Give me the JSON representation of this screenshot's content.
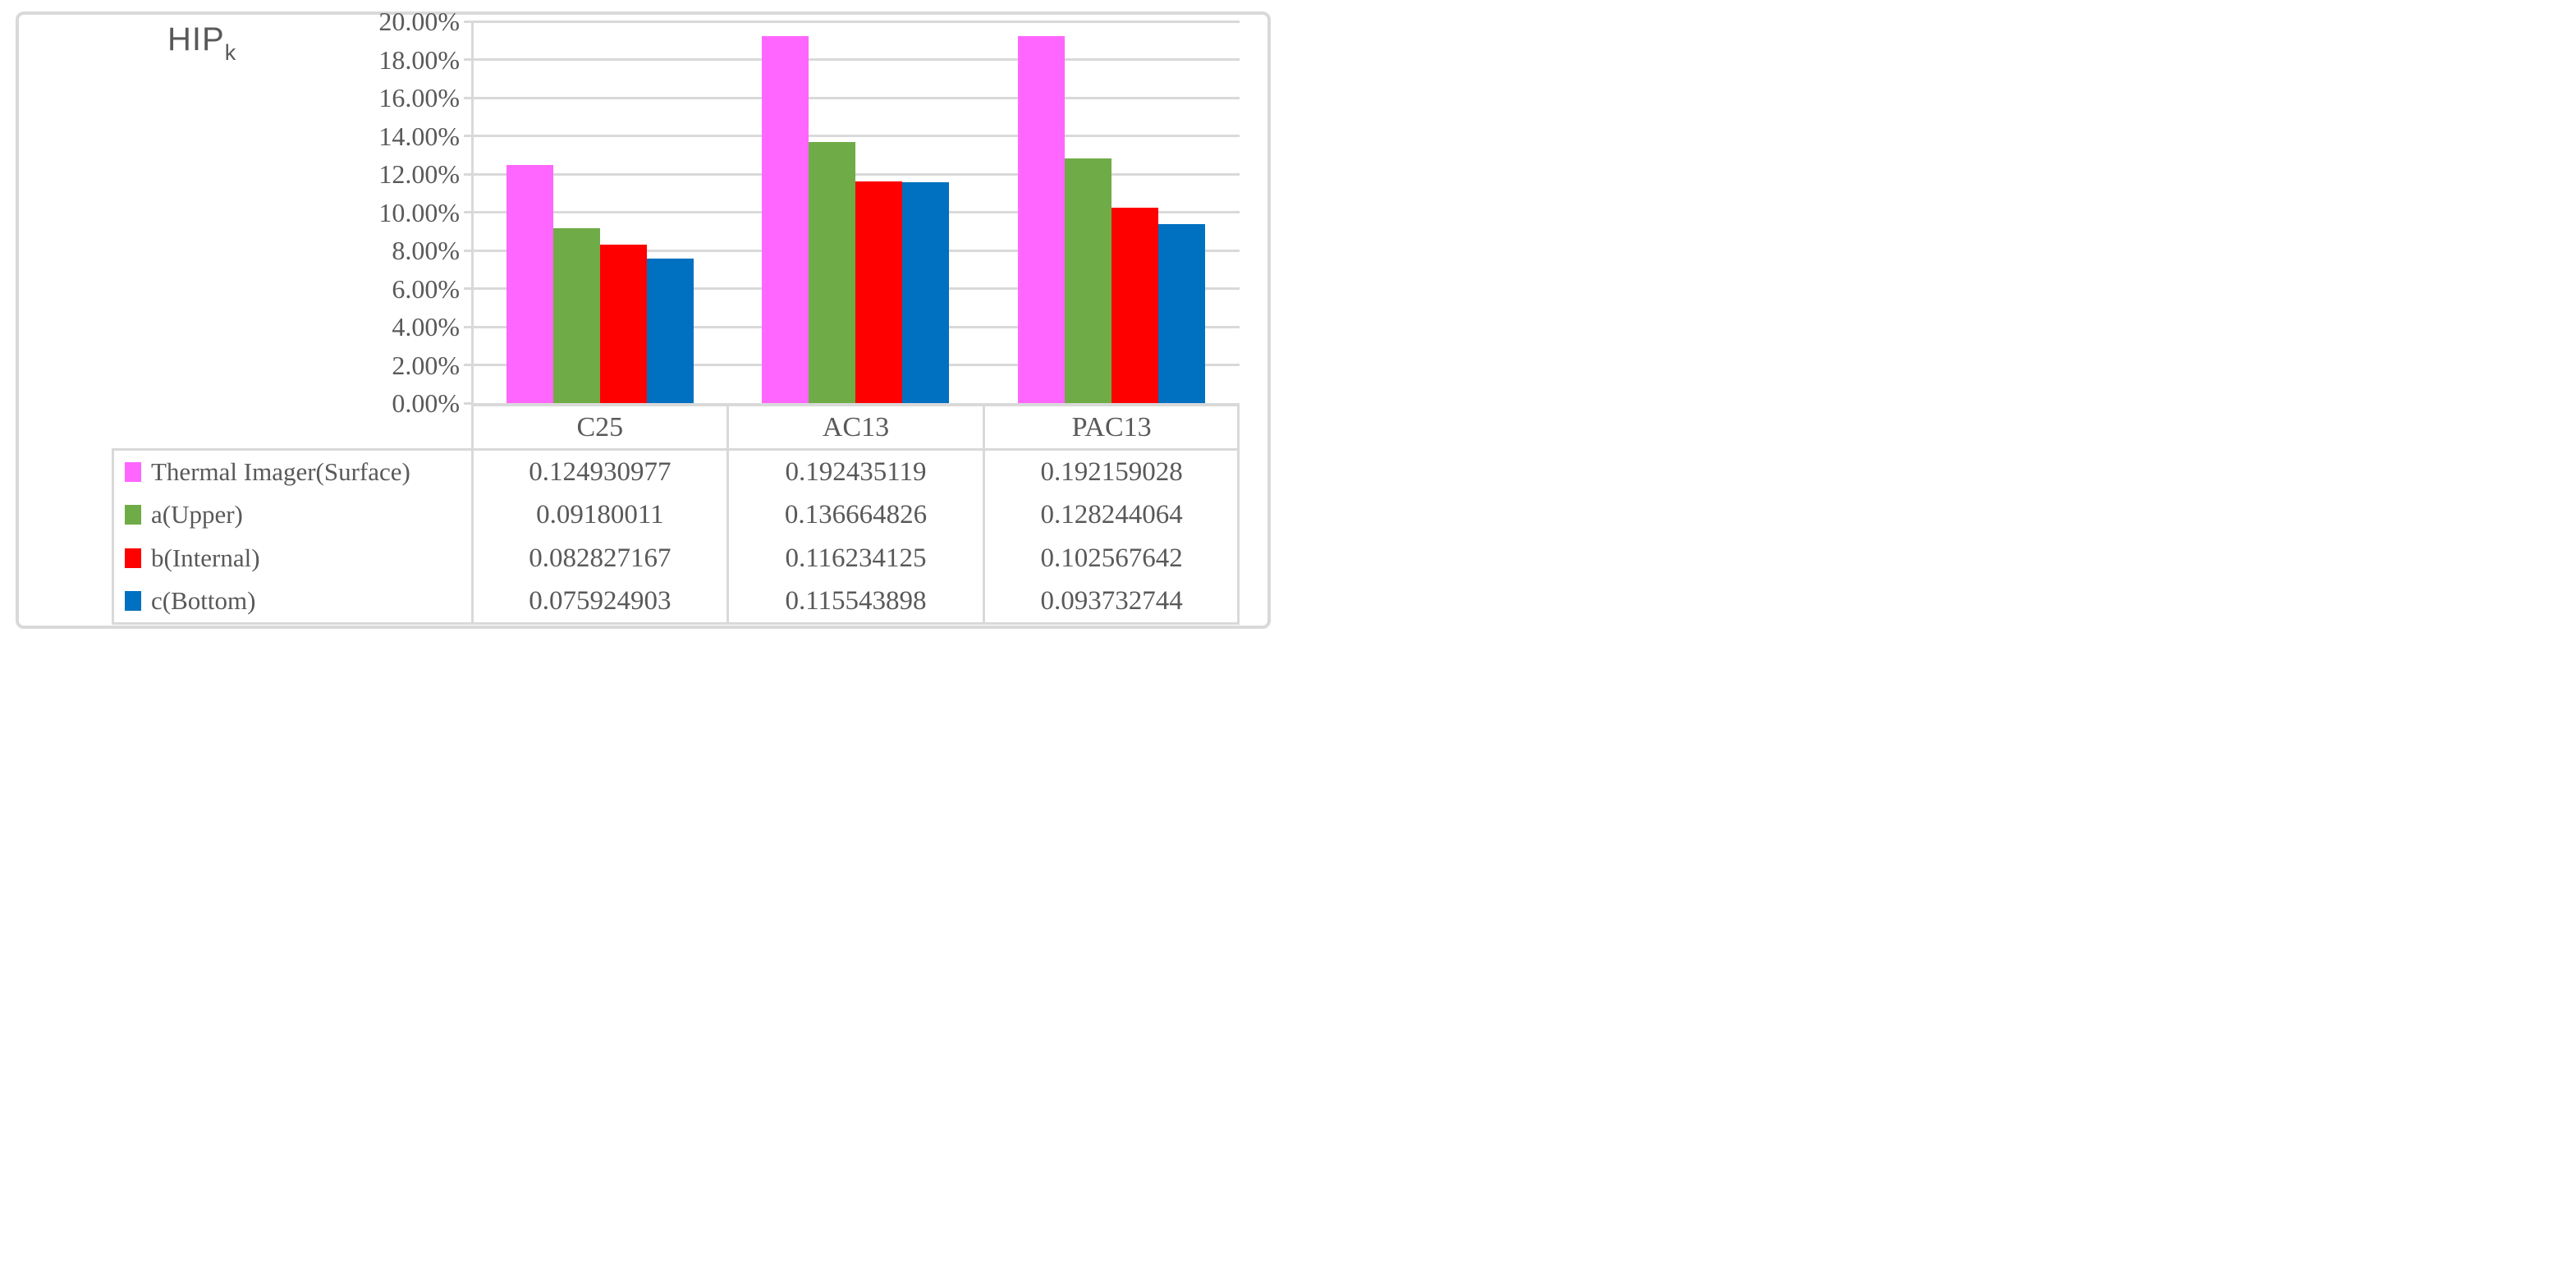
{
  "title": {
    "main": "HIP",
    "subscript": "k"
  },
  "chart_data": {
    "type": "bar",
    "categories": [
      "C25",
      "AC13",
      "PAC13"
    ],
    "series": [
      {
        "name": "Thermal Imager(Surface)",
        "color": "#FF66FF",
        "values": [
          0.124930977,
          0.192435119,
          0.192159028
        ],
        "labels": [
          "0.124930977",
          "0.192435119",
          "0.192159028"
        ]
      },
      {
        "name": "a(Upper)",
        "color": "#6FAC47",
        "values": [
          0.09180011,
          0.136664826,
          0.128244064
        ],
        "labels": [
          "0.09180011",
          "0.136664826",
          "0.128244064"
        ]
      },
      {
        "name": "b(Internal)",
        "color": "#FF0000",
        "values": [
          0.082827167,
          0.116234125,
          0.102567642
        ],
        "labels": [
          "0.082827167",
          "0.116234125",
          "0.102567642"
        ]
      },
      {
        "name": "c(Bottom)",
        "color": "#0070C0",
        "values": [
          0.075924903,
          0.115543898,
          0.093732744
        ],
        "labels": [
          "0.075924903",
          "0.115543898",
          "0.093732744"
        ]
      }
    ],
    "y_axis": {
      "min": 0,
      "max": 0.2,
      "step": 0.02,
      "tick_labels": [
        "20.00%",
        "18.00%",
        "16.00%",
        "14.00%",
        "12.00%",
        "10.00%",
        "8.00%",
        "6.00%",
        "4.00%",
        "2.00%",
        "0.00%"
      ]
    },
    "grid": true,
    "legend_position": "data-table-left-column",
    "data_table_shown": true
  },
  "colors": {
    "text": "#595959",
    "grid": "#D9D9D9",
    "background": "#FFFFFF"
  }
}
